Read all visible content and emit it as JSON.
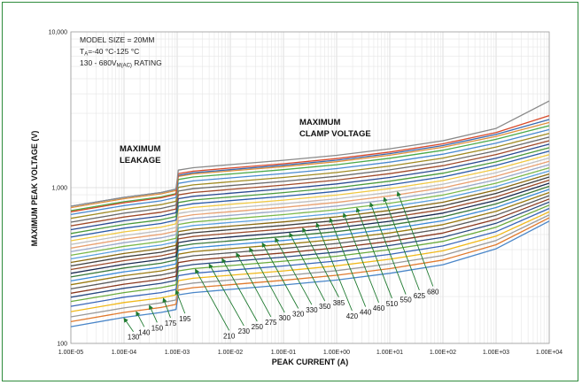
{
  "chart_data": {
    "type": "line",
    "xscale": "log",
    "yscale": "log",
    "xlim": [
      1e-05,
      10000
    ],
    "ylim": [
      100,
      10000
    ],
    "xlabel": "PEAK CURRENT (A)",
    "ylabel": "MAXIMUM PEAK VOLTAGE (V)",
    "x_tick_labels": [
      "1.00E-05",
      "1.00E-04",
      "1.00E-03",
      "1.00E-02",
      "1.00E-01",
      "1.00E+00",
      "1.00E+01",
      "1.00E+02",
      "1.00E+03",
      "1.00E+04"
    ],
    "y_tick_labels": [
      "100",
      "1,000",
      "10,000"
    ],
    "notes": [
      "MODEL SIZE = 20MM",
      "T",
      "A",
      "=-40 °C-125 °C",
      "130  - 680V",
      "M(AC)",
      " RATING"
    ],
    "region_labels": {
      "leakage": [
        "MAXIMUM",
        "LEAKAGE"
      ],
      "clamp": [
        "MAXIMUM",
        "CLAMP VOLTAGE"
      ]
    },
    "x": [
      1e-05,
      0.0001,
      0.0005,
      0.00095,
      0.00105,
      0.002,
      0.01,
      0.1,
      1,
      10,
      100,
      1000,
      10000
    ],
    "series": [
      {
        "name": "130",
        "color": "#4a86c8",
        "values": [
          128,
          147,
          158,
          165,
          205,
          212,
          222,
          237,
          255,
          282,
          320,
          405,
          610
        ],
        "arrow_x": 0.0001,
        "label_at": [
          0.00015,
          110
        ]
      },
      {
        "name": "140",
        "color": "#e07a2e",
        "values": [
          138,
          158,
          170,
          178,
          220,
          228,
          238,
          254,
          274,
          302,
          343,
          430,
          640
        ],
        "arrow_x": 0.00017,
        "label_at": [
          0.00024,
          118
        ]
      },
      {
        "name": "150",
        "color": "#9a9a9a",
        "values": [
          148,
          169,
          182,
          190,
          236,
          244,
          255,
          272,
          293,
          324,
          367,
          458,
          668
        ],
        "arrow_x": 0.0003,
        "label_at": [
          0.00042,
          126
        ]
      },
      {
        "name": "175",
        "color": "#f0b81a",
        "values": [
          160,
          183,
          196,
          205,
          253,
          262,
          274,
          292,
          315,
          347,
          393,
          488,
          700
        ],
        "arrow_x": 0.00055,
        "label_at": [
          0.00075,
          135
        ]
      },
      {
        "name": "195",
        "color": "#3a66b8",
        "values": [
          173,
          198,
          212,
          222,
          272,
          282,
          295,
          314,
          338,
          373,
          422,
          522,
          735
        ],
        "arrow_x": 0.00095,
        "label_at": [
          0.0014,
          144
        ]
      },
      {
        "name": "210",
        "color": "#6aaa3c",
        "values": [
          186,
          212,
          228,
          238,
          292,
          302,
          316,
          337,
          363,
          400,
          452,
          557,
          772
        ],
        "arrow_x": 0.0022,
        "label_at": [
          0.0095,
          112
        ]
      },
      {
        "name": "230",
        "color": "#2a4a80",
        "values": [
          198,
          226,
          243,
          254,
          310,
          321,
          336,
          358,
          386,
          425,
          480,
          590,
          808
        ],
        "arrow_x": 0.004,
        "label_at": [
          0.018,
          120
        ]
      },
      {
        "name": "250",
        "color": "#8a3a20",
        "values": [
          210,
          240,
          258,
          270,
          330,
          342,
          358,
          381,
          411,
          452,
          511,
          626,
          846
        ],
        "arrow_x": 0.007,
        "label_at": [
          0.032,
          128
        ]
      },
      {
        "name": "275",
        "color": "#5a5a5a",
        "values": [
          224,
          256,
          275,
          288,
          352,
          365,
          382,
          407,
          438,
          482,
          545,
          665,
          888
        ],
        "arrow_x": 0.013,
        "label_at": [
          0.058,
          137
        ]
      },
      {
        "name": "300",
        "color": "#9a7a10",
        "values": [
          238,
          272,
          292,
          306,
          374,
          388,
          406,
          432,
          466,
          512,
          579,
          705,
          930
        ],
        "arrow_x": 0.023,
        "label_at": [
          0.105,
          146
        ]
      },
      {
        "name": "320",
        "color": "#3a8ad8",
        "values": [
          252,
          288,
          309,
          324,
          396,
          411,
          430,
          458,
          493,
          543,
          613,
          745,
          975
        ],
        "arrow_x": 0.04,
        "label_at": [
          0.19,
          155
        ]
      },
      {
        "name": "330",
        "color": "#3a7a3a",
        "values": [
          267,
          305,
          327,
          343,
          420,
          435,
          455,
          485,
          522,
          575,
          649,
          786,
          1020
        ],
        "arrow_x": 0.07,
        "label_at": [
          0.34,
          164
        ]
      },
      {
        "name": "350",
        "color": "#1a2a50",
        "values": [
          282,
          322,
          346,
          363,
          444,
          460,
          482,
          513,
          552,
          608,
          686,
          828,
          1068
        ],
        "arrow_x": 0.13,
        "label_at": [
          0.6,
          173
        ]
      },
      {
        "name": "385",
        "color": "#9a4a2a",
        "values": [
          298,
          340,
          365,
          383,
          469,
          486,
          509,
          542,
          583,
          642,
          724,
          872,
          1118
        ],
        "arrow_x": 0.23,
        "label_at": [
          1.1,
          183
        ]
      },
      {
        "name": "420",
        "color": "#404040",
        "values": [
          314,
          359,
          385,
          404,
          495,
          513,
          537,
          572,
          615,
          677,
          764,
          918,
          1170
        ],
        "arrow_x": 0.42,
        "label_at": [
          1.95,
          150
        ]
      },
      {
        "name": "440",
        "color": "#8a6a10",
        "values": [
          331,
          378,
          406,
          426,
          522,
          541,
          566,
          603,
          649,
          714,
          806,
          966,
          1224
        ],
        "arrow_x": 0.75,
        "label_at": [
          3.5,
          159
        ]
      },
      {
        "name": "460",
        "color": "#5aa0e0",
        "values": [
          349,
          399,
          428,
          449,
          551,
          571,
          597,
          636,
          684,
          753,
          850,
          1016,
          1280
        ],
        "arrow_x": 1.35,
        "label_at": [
          6.2,
          169
        ]
      },
      {
        "name": "510",
        "color": "#7ab84a",
        "values": [
          368,
          420,
          451,
          473,
          580,
          602,
          630,
          671,
          722,
          794,
          896,
          1068,
          1340
        ],
        "arrow_x": 2.4,
        "label_at": [
          11,
          180
        ]
      },
      {
        "name": "550",
        "color": "#9aa8c8",
        "values": [
          388,
          443,
          476,
          499,
          612,
          635,
          664,
          708,
          762,
          838,
          945,
          1124,
          1405
        ],
        "arrow_x": 4.3,
        "label_at": [
          20,
          191
        ]
      },
      {
        "name": "625",
        "color": "#e8a070",
        "values": [
          409,
          467,
          502,
          526,
          646,
          670,
          701,
          747,
          804,
          884,
          997,
          1184,
          1475
        ],
        "arrow_x": 7.8,
        "label_at": [
          36,
          203
        ]
      },
      {
        "name": "680",
        "color": "#c0c0c0",
        "values": [
          432,
          493,
          529,
          555,
          682,
          707,
          740,
          788,
          848,
          933,
          1052,
          1248,
          1550
        ],
        "arrow_x": 14,
        "label_at": [
          65,
          215
        ]
      },
      {
        "name": "",
        "color": "#f0c840",
        "values": [
          456,
          520,
          558,
          586,
          720,
          746,
          781,
          832,
          896,
          986,
          1110,
          1316,
          1630
        ],
        "arrow_x": null,
        "label_at": null
      },
      {
        "name": "",
        "color": "#2a5aa8",
        "values": [
          481,
          549,
          589,
          618,
          760,
          788,
          825,
          879,
          946,
          1041,
          1172,
          1388,
          1715
        ],
        "arrow_x": null,
        "label_at": null
      },
      {
        "name": "",
        "color": "#4a9a3a",
        "values": [
          508,
          580,
          622,
          653,
          803,
          833,
          871,
          929,
          1000,
          1100,
          1238,
          1464,
          1805
        ],
        "arrow_x": null,
        "label_at": null
      },
      {
        "name": "",
        "color": "#2a4a90",
        "values": [
          537,
          613,
          657,
          690,
          849,
          880,
          921,
          982,
          1057,
          1163,
          1309,
          1546,
          1900
        ],
        "arrow_x": null,
        "label_at": null
      },
      {
        "name": "",
        "color": "#a04a2a",
        "values": [
          568,
          648,
          695,
          730,
          898,
          931,
          974,
          1038,
          1117,
          1229,
          1383,
          1632,
          2000
        ],
        "arrow_x": null,
        "label_at": null
      },
      {
        "name": "",
        "color": "#6a6a6a",
        "values": [
          600,
          685,
          735,
          772,
          950,
          985,
          1030,
          1098,
          1182,
          1300,
          1463,
          1724,
          2110
        ],
        "arrow_x": null,
        "label_at": null
      },
      {
        "name": "",
        "color": "#a08a20",
        "values": [
          635,
          725,
          778,
          817,
          1005,
          1042,
          1090,
          1162,
          1251,
          1376,
          1548,
          1822,
          2230
        ],
        "arrow_x": null,
        "label_at": null
      },
      {
        "name": "",
        "color": "#4a8ad0",
        "values": [
          672,
          767,
          823,
          865,
          1065,
          1104,
          1155,
          1231,
          1325,
          1457,
          1640,
          1928,
          2360
        ],
        "arrow_x": null,
        "label_at": null
      },
      {
        "name": "",
        "color": "#4aaa4a",
        "values": [
          712,
          812,
          872,
          916,
          1128,
          1170,
          1224,
          1304,
          1404,
          1544,
          1737,
          2042,
          2500
        ],
        "arrow_x": null,
        "label_at": null
      },
      {
        "name": "",
        "color": "#e0903a",
        "values": [
          744,
          849,
          912,
          958,
          1180,
          1224,
          1280,
          1364,
          1468,
          1614,
          1816,
          2134,
          2620
        ],
        "arrow_x": null,
        "label_at": null
      },
      {
        "name": "",
        "color": "#3a6ab0",
        "values": [
          760,
          866,
          930,
          978,
          1200,
          1246,
          1305,
          1392,
          1500,
          1652,
          1862,
          2196,
          2740
        ],
        "arrow_x": null,
        "label_at": null
      },
      {
        "name": "",
        "color": "#d84a2a",
        "values": [
          700,
          800,
          860,
          905,
          1230,
          1276,
          1335,
          1424,
          1535,
          1692,
          1910,
          2260,
          2900
        ],
        "arrow_x": null,
        "label_at": null
      },
      {
        "name": "",
        "color": "#8a8a8a",
        "values": [
          760,
          866,
          930,
          978,
          1295,
          1343,
          1405,
          1498,
          1613,
          1775,
          2000,
          2400,
          3600
        ],
        "arrow_x": null,
        "label_at": null
      }
    ],
    "grid": true
  }
}
